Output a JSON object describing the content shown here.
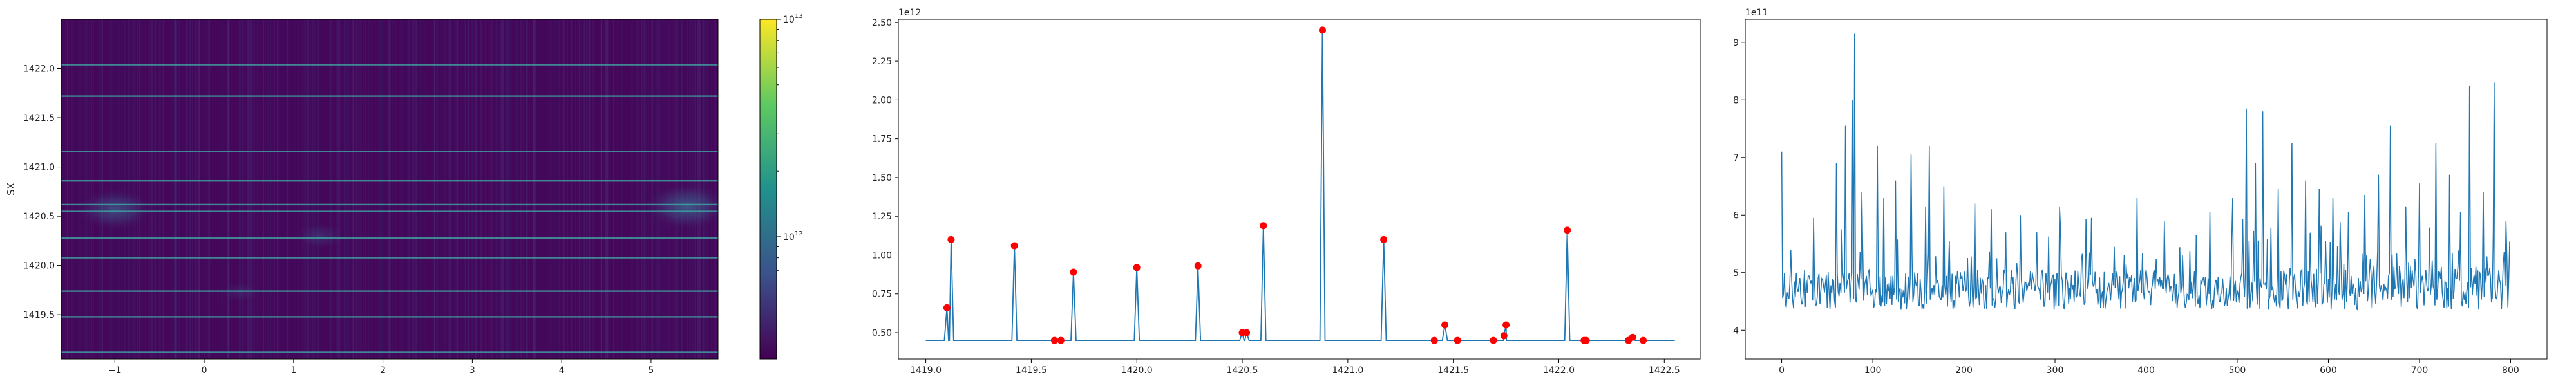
{
  "figure": {
    "background": "#ffffff"
  },
  "chart_data": [
    {
      "type": "heatmap",
      "ylabel": "SX",
      "xlim": [
        -1.6,
        5.75
      ],
      "ylim": [
        1419.05,
        1422.5
      ],
      "x_ticks": [
        -1,
        0,
        1,
        2,
        3,
        4,
        5
      ],
      "y_ticks": [
        1419.5,
        1420.0,
        1420.5,
        1421.0,
        1421.5,
        1422.0
      ],
      "colormap": "viridis",
      "color_scale": "log",
      "base_color": "#44075a",
      "bright_rows_y": [
        1419.12,
        1419.48,
        1419.74,
        1420.08,
        1420.28,
        1420.55,
        1420.62,
        1420.86,
        1421.16,
        1421.72,
        1422.04
      ],
      "blobs": [
        {
          "x": -1.0,
          "y": 1420.57,
          "strength": 0.6
        },
        {
          "x": 5.4,
          "y": 1420.6,
          "strength": 0.7
        },
        {
          "x": 1.3,
          "y": 1420.3,
          "strength": 0.3
        },
        {
          "x": 0.4,
          "y": 1419.73,
          "strength": 0.2
        }
      ],
      "colorbar": {
        "tick_labels": [
          {
            "label": "10",
            "exp": "13",
            "pos": 1.0
          },
          {
            "label": "10",
            "exp": "12",
            "pos": 0.36
          }
        ]
      }
    },
    {
      "type": "line",
      "title": "",
      "offset_text": "1e12",
      "xlim": [
        1418.87,
        1422.67
      ],
      "ylim": [
        0.33,
        2.52
      ],
      "x_ticks": [
        1419.0,
        1419.5,
        1420.0,
        1420.5,
        1421.0,
        1421.5,
        1422.0,
        1422.5
      ],
      "y_ticks": [
        0.5,
        0.75,
        1.0,
        1.25,
        1.5,
        1.75,
        2.0,
        2.25,
        2.5
      ],
      "baseline": 0.45,
      "x_start": 1419.0,
      "x_end": 1422.55,
      "line_color": "#1f77b4",
      "marker_color": "#ff0000",
      "peaks": [
        {
          "x": 1419.1,
          "y": 0.66
        },
        {
          "x": 1419.12,
          "y": 1.1
        },
        {
          "x": 1419.42,
          "y": 1.06
        },
        {
          "x": 1419.61,
          "y": 0.45
        },
        {
          "x": 1419.64,
          "y": 0.45
        },
        {
          "x": 1419.7,
          "y": 0.89
        },
        {
          "x": 1420.0,
          "y": 0.92
        },
        {
          "x": 1420.29,
          "y": 0.93
        },
        {
          "x": 1420.5,
          "y": 0.5
        },
        {
          "x": 1420.52,
          "y": 0.5
        },
        {
          "x": 1420.6,
          "y": 1.19
        },
        {
          "x": 1420.88,
          "y": 2.45
        },
        {
          "x": 1421.17,
          "y": 1.1
        },
        {
          "x": 1421.41,
          "y": 0.45
        },
        {
          "x": 1421.46,
          "y": 0.55
        },
        {
          "x": 1421.52,
          "y": 0.45
        },
        {
          "x": 1421.69,
          "y": 0.45
        },
        {
          "x": 1421.74,
          "y": 0.48
        },
        {
          "x": 1421.75,
          "y": 0.55
        },
        {
          "x": 1422.04,
          "y": 1.16
        },
        {
          "x": 1422.12,
          "y": 0.45
        },
        {
          "x": 1422.13,
          "y": 0.45
        },
        {
          "x": 1422.33,
          "y": 0.45
        },
        {
          "x": 1422.35,
          "y": 0.47
        },
        {
          "x": 1422.4,
          "y": 0.45
        }
      ]
    },
    {
      "type": "line",
      "offset_text": "1e11",
      "xlim": [
        -40,
        840
      ],
      "ylim": [
        3.5,
        9.4
      ],
      "x_ticks": [
        0,
        100,
        200,
        300,
        400,
        500,
        600,
        700,
        800
      ],
      "y_ticks": [
        4,
        5,
        6,
        7,
        8,
        9
      ],
      "line_color": "#1f77b4",
      "n_points": 800,
      "base_level": 4.6,
      "noise_amplitude": 0.35,
      "spikes": [
        {
          "x": 0,
          "y": 7.1
        },
        {
          "x": 10,
          "y": 5.4
        },
        {
          "x": 35,
          "y": 5.95
        },
        {
          "x": 60,
          "y": 6.9
        },
        {
          "x": 70,
          "y": 7.55
        },
        {
          "x": 78,
          "y": 8.0
        },
        {
          "x": 80,
          "y": 9.15
        },
        {
          "x": 88,
          "y": 6.4
        },
        {
          "x": 105,
          "y": 7.2
        },
        {
          "x": 112,
          "y": 6.3
        },
        {
          "x": 125,
          "y": 6.6
        },
        {
          "x": 142,
          "y": 7.05
        },
        {
          "x": 158,
          "y": 6.15
        },
        {
          "x": 162,
          "y": 7.2
        },
        {
          "x": 178,
          "y": 6.5
        },
        {
          "x": 212,
          "y": 6.2
        },
        {
          "x": 230,
          "y": 6.1
        },
        {
          "x": 262,
          "y": 6.0
        },
        {
          "x": 280,
          "y": 5.7
        },
        {
          "x": 305,
          "y": 6.15
        },
        {
          "x": 340,
          "y": 5.95
        },
        {
          "x": 365,
          "y": 5.45
        },
        {
          "x": 390,
          "y": 6.3
        },
        {
          "x": 420,
          "y": 5.9
        },
        {
          "x": 455,
          "y": 5.65
        },
        {
          "x": 470,
          "y": 6.05
        },
        {
          "x": 495,
          "y": 6.3
        },
        {
          "x": 510,
          "y": 7.85
        },
        {
          "x": 520,
          "y": 6.9
        },
        {
          "x": 528,
          "y": 7.8
        },
        {
          "x": 545,
          "y": 6.45
        },
        {
          "x": 560,
          "y": 7.25
        },
        {
          "x": 575,
          "y": 6.6
        },
        {
          "x": 590,
          "y": 6.45
        },
        {
          "x": 605,
          "y": 6.3
        },
        {
          "x": 622,
          "y": 6.05
        },
        {
          "x": 640,
          "y": 6.35
        },
        {
          "x": 655,
          "y": 6.7
        },
        {
          "x": 668,
          "y": 7.55
        },
        {
          "x": 685,
          "y": 6.15
        },
        {
          "x": 700,
          "y": 6.55
        },
        {
          "x": 718,
          "y": 7.25
        },
        {
          "x": 733,
          "y": 6.7
        },
        {
          "x": 745,
          "y": 6.05
        },
        {
          "x": 755,
          "y": 8.25
        },
        {
          "x": 770,
          "y": 6.4
        },
        {
          "x": 782,
          "y": 8.3
        },
        {
          "x": 795,
          "y": 5.9
        }
      ]
    }
  ]
}
